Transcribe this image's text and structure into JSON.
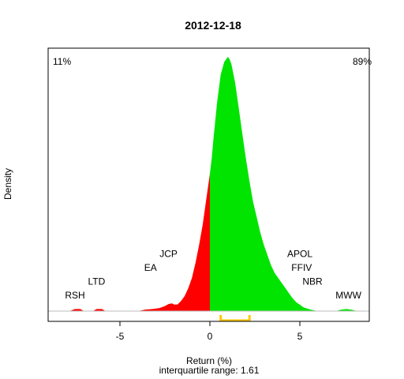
{
  "chart_data": {
    "type": "area",
    "title": "2012-12-18",
    "xlabel": "Return (%)",
    "ylabel": "Density",
    "subtitle": "interquartile range: 1.61",
    "xlim": [
      -9.0,
      9.0
    ],
    "ylim": [
      0,
      1.0
    ],
    "x_ticks": [
      -5,
      0,
      5
    ],
    "x_tick_labels": [
      "-5",
      "0",
      "5"
    ],
    "grid": false,
    "negative_share_label": "11%",
    "positive_share_label": "89%",
    "colors": {
      "negative": "#ff0000",
      "positive": "#00e400",
      "iqr_marker": "#ffc800",
      "baseline": "#bebebe",
      "negative_label": "#ff0000",
      "positive_label": "#009000"
    },
    "iqr": [
      0.6,
      2.2
    ],
    "density": {
      "x": [
        -7.8,
        -7.5,
        -7.2,
        -7.0,
        -6.5,
        -6.3,
        -6.0,
        -5.8,
        -5.5,
        -5.0,
        -4.5,
        -4.0,
        -3.6,
        -3.2,
        -2.8,
        -2.5,
        -2.3,
        -2.1,
        -2.0,
        -1.8,
        -1.6,
        -1.4,
        -1.2,
        -1.0,
        -0.8,
        -0.6,
        -0.4,
        -0.2,
        0.0,
        0.1,
        0.2,
        0.4,
        0.6,
        0.8,
        1.0,
        1.1,
        1.2,
        1.4,
        1.6,
        1.8,
        2.0,
        2.2,
        2.4,
        2.6,
        2.8,
        3.0,
        3.2,
        3.4,
        3.6,
        3.8,
        4.0,
        4.2,
        4.4,
        4.6,
        4.8,
        5.0,
        5.2,
        5.4,
        5.6,
        5.8,
        6.0,
        6.3,
        6.6,
        7.0,
        7.3,
        7.6,
        7.9,
        8.2,
        8.5
      ],
      "y": [
        0.0,
        0.008,
        0.008,
        0.0,
        0.0,
        0.008,
        0.008,
        0.0,
        0.0,
        0.0,
        0.0,
        0.0,
        0.006,
        0.008,
        0.012,
        0.02,
        0.028,
        0.03,
        0.026,
        0.026,
        0.04,
        0.06,
        0.09,
        0.13,
        0.19,
        0.26,
        0.34,
        0.44,
        0.54,
        0.6,
        0.68,
        0.82,
        0.93,
        0.98,
        1.0,
        0.99,
        0.97,
        0.9,
        0.8,
        0.7,
        0.6,
        0.51,
        0.43,
        0.37,
        0.31,
        0.26,
        0.22,
        0.18,
        0.15,
        0.13,
        0.11,
        0.09,
        0.07,
        0.05,
        0.035,
        0.025,
        0.015,
        0.01,
        0.006,
        0.003,
        0.0,
        0.0,
        0.0,
        0.0,
        0.006,
        0.008,
        0.005,
        0.0,
        0.0
      ]
    },
    "annotations": [
      {
        "label": "RSH",
        "x": -7.5,
        "y": 0.05
      },
      {
        "label": "LTD",
        "x": -6.3,
        "y": 0.104
      },
      {
        "label": "EA",
        "x": -3.3,
        "y": 0.158
      },
      {
        "label": "JCP",
        "x": -2.3,
        "y": 0.213
      },
      {
        "label": "APOL",
        "x": 5.0,
        "y": 0.213
      },
      {
        "label": "FFIV",
        "x": 5.1,
        "y": 0.158
      },
      {
        "label": "NBR",
        "x": 5.7,
        "y": 0.104
      },
      {
        "label": "MWW",
        "x": 7.7,
        "y": 0.05
      }
    ]
  }
}
